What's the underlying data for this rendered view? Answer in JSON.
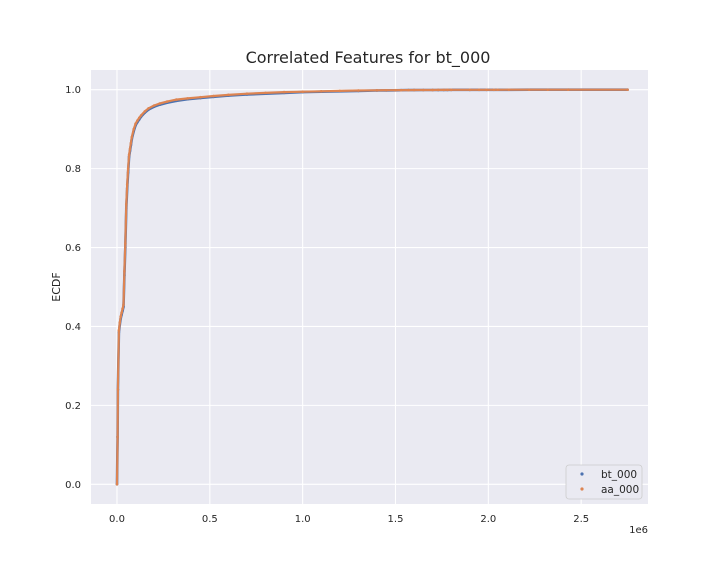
{
  "chart_data": {
    "type": "scatter",
    "title": "Correlated Features for bt_000",
    "xlabel": "",
    "ylabel": "ECDF",
    "x_offset_label": "1e6",
    "xlim": [
      -0.14,
      2.86
    ],
    "ylim": [
      -0.05,
      1.05
    ],
    "xticks": [
      0.0,
      0.5,
      1.0,
      1.5,
      2.0,
      2.5
    ],
    "xtick_labels": [
      "0.0",
      "0.5",
      "1.0",
      "1.5",
      "2.0",
      "2.5"
    ],
    "yticks": [
      0.0,
      0.2,
      0.4,
      0.6,
      0.8,
      1.0
    ],
    "ytick_labels": [
      "0.0",
      "0.2",
      "0.4",
      "0.6",
      "0.8",
      "1.0"
    ],
    "grid": true,
    "legend_position": "bottom-right",
    "background_color": "#eaeaf2",
    "series": [
      {
        "name": "bt_000",
        "color": "#4c72b0",
        "x": [
          0.0,
          0.003,
          0.005,
          0.01,
          0.015,
          0.02,
          0.025,
          0.03,
          0.035,
          0.04,
          0.045,
          0.05,
          0.055,
          0.06,
          0.065,
          0.07,
          0.075,
          0.08,
          0.09,
          0.1,
          0.11,
          0.12,
          0.13,
          0.15,
          0.17,
          0.2,
          0.23,
          0.27,
          0.32,
          0.38,
          0.45,
          0.52,
          0.6,
          0.7,
          0.8,
          0.9,
          1.0,
          1.1,
          1.2,
          1.3,
          1.4,
          1.45,
          1.5,
          1.53,
          1.57,
          1.6,
          1.65,
          1.7,
          1.73,
          1.76,
          1.78,
          1.8,
          1.9,
          1.95,
          1.99,
          2.03,
          2.05,
          2.11,
          2.22,
          2.32,
          2.43,
          2.75
        ],
        "y": [
          0.0,
          0.12,
          0.24,
          0.385,
          0.405,
          0.42,
          0.43,
          0.44,
          0.45,
          0.53,
          0.6,
          0.7,
          0.75,
          0.79,
          0.83,
          0.845,
          0.86,
          0.875,
          0.895,
          0.91,
          0.918,
          0.925,
          0.932,
          0.942,
          0.95,
          0.957,
          0.962,
          0.967,
          0.972,
          0.976,
          0.979,
          0.982,
          0.985,
          0.988,
          0.99,
          0.992,
          0.994,
          0.995,
          0.996,
          0.997,
          0.998,
          0.9983,
          0.9986,
          0.9988,
          0.999,
          0.9991,
          0.9992,
          0.9993,
          0.9994,
          0.9995,
          0.9996,
          0.9997,
          0.99975,
          0.9998,
          0.99985,
          0.9999,
          0.99992,
          0.99994,
          0.99996,
          0.99997,
          0.99998,
          1.0
        ]
      },
      {
        "name": "aa_000",
        "color": "#dd8452",
        "x": [
          0.0,
          0.003,
          0.005,
          0.01,
          0.015,
          0.02,
          0.025,
          0.03,
          0.035,
          0.04,
          0.045,
          0.05,
          0.055,
          0.06,
          0.065,
          0.07,
          0.075,
          0.08,
          0.09,
          0.1,
          0.11,
          0.12,
          0.13,
          0.15,
          0.17,
          0.2,
          0.23,
          0.27,
          0.32,
          0.38,
          0.45,
          0.52,
          0.6,
          0.7,
          0.8,
          0.9,
          1.0,
          1.1,
          1.2,
          1.3,
          1.4,
          1.45,
          1.5,
          1.53,
          1.57,
          1.6,
          1.65,
          1.7,
          1.73,
          1.76,
          1.78,
          1.8,
          1.9,
          1.95,
          1.99,
          2.03,
          2.05,
          2.11,
          2.22,
          2.32,
          2.43,
          2.75
        ],
        "y": [
          0.0,
          0.12,
          0.24,
          0.39,
          0.41,
          0.425,
          0.435,
          0.445,
          0.455,
          0.54,
          0.61,
          0.71,
          0.76,
          0.8,
          0.835,
          0.85,
          0.865,
          0.88,
          0.9,
          0.914,
          0.922,
          0.929,
          0.935,
          0.945,
          0.953,
          0.96,
          0.965,
          0.97,
          0.975,
          0.978,
          0.981,
          0.984,
          0.987,
          0.99,
          0.992,
          0.994,
          0.995,
          0.996,
          0.997,
          0.998,
          0.9985,
          0.9987,
          0.9989,
          0.999,
          0.9991,
          0.9992,
          0.9993,
          0.9994,
          0.9995,
          0.9996,
          0.9997,
          0.99975,
          0.9998,
          0.99985,
          0.9999,
          0.99992,
          0.99994,
          0.99995,
          0.99996,
          0.99997,
          0.99998,
          1.0
        ]
      }
    ]
  }
}
